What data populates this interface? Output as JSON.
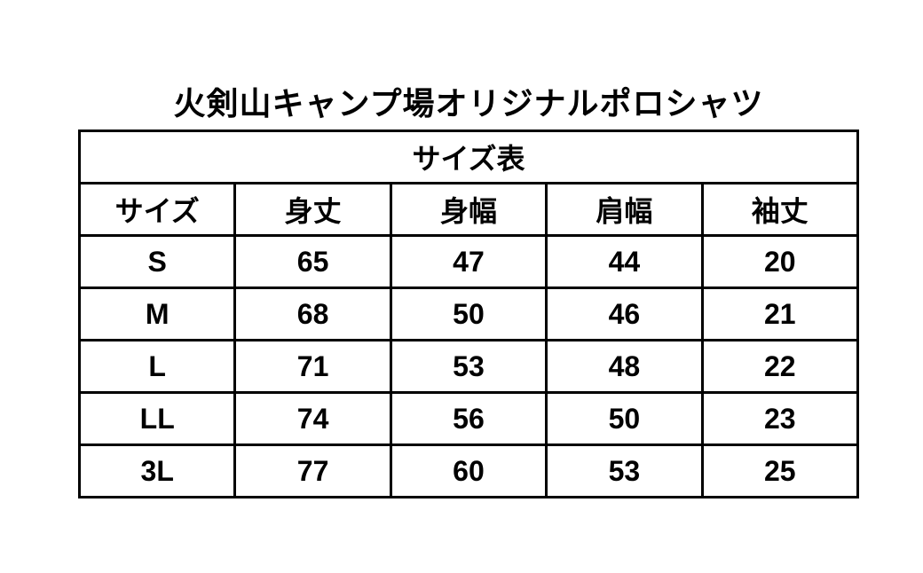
{
  "title": "火剣山キャンプ場オリジナルポロシャツ",
  "table": {
    "caption": "サイズ表",
    "headers": [
      "サイズ",
      "身丈",
      "身幅",
      "肩幅",
      "袖丈"
    ],
    "rows": [
      [
        "S",
        "65",
        "47",
        "44",
        "20"
      ],
      [
        "M",
        "68",
        "50",
        "46",
        "21"
      ],
      [
        "L",
        "71",
        "53",
        "48",
        "22"
      ],
      [
        "LL",
        "74",
        "56",
        "50",
        "23"
      ],
      [
        "3L",
        "77",
        "60",
        "53",
        "25"
      ]
    ]
  },
  "chart_data": {
    "type": "table",
    "title": "サイズ表",
    "columns": [
      "サイズ",
      "身丈",
      "身幅",
      "肩幅",
      "袖丈"
    ],
    "rows": [
      [
        "S",
        65,
        47,
        44,
        20
      ],
      [
        "M",
        68,
        50,
        46,
        21
      ],
      [
        "L",
        71,
        53,
        48,
        22
      ],
      [
        "LL",
        74,
        56,
        50,
        23
      ],
      [
        "3L",
        77,
        60,
        53,
        25
      ]
    ]
  }
}
